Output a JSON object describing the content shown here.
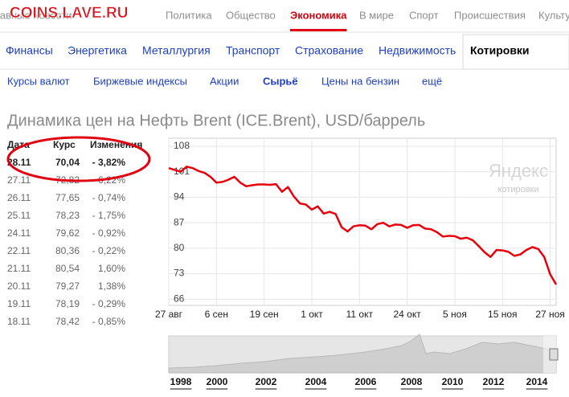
{
  "watermark": "COINS.LAVE.RU",
  "nav_top": {
    "items": [
      "Главные новости",
      "Политика",
      "Общество",
      "Экономика",
      "В мире",
      "Спорт",
      "Происшествия",
      "Культура"
    ],
    "active": 3
  },
  "nav_sections": {
    "items": [
      "Финансы",
      "Энергетика",
      "Металлургия",
      "Транспорт",
      "Страхование",
      "Недвижимость",
      "Котировки"
    ],
    "active": 6
  },
  "nav_sub": {
    "items": [
      "Курсы валют",
      "Биржевые индексы",
      "Акции",
      "Сырьё",
      "Цены на бензин",
      "ещё"
    ],
    "active": 3
  },
  "title": "Динамика цен на Нефть Brent (ICE.Brent), USD/баррель",
  "table": {
    "headers": [
      "Дата",
      "Курс",
      "Изменения"
    ],
    "rows": [
      [
        "28.11",
        "70,04",
        "- 3,82%"
      ],
      [
        "27.11",
        "72,82",
        "- 6,22%"
      ],
      [
        "26.11",
        "77,65",
        "- 0,74%"
      ],
      [
        "25.11",
        "78,23",
        "- 1,75%"
      ],
      [
        "24.11",
        "79,62",
        "- 0,92%"
      ],
      [
        "22.11",
        "80,36",
        "- 0,22%"
      ],
      [
        "21.11",
        "80,54",
        "1,60%"
      ],
      [
        "20.11",
        "79,27",
        "1,38%"
      ],
      [
        "19.11",
        "78,19",
        "- 0,29%"
      ],
      [
        "18.11",
        "78,42",
        "- 0,85%"
      ]
    ]
  },
  "chart": {
    "type": "line",
    "series": [
      {
        "color": "#e8000b",
        "values": [
          102.0,
          101.5,
          101.0,
          102.4,
          102.0,
          101.2,
          100.7,
          99.6,
          98.0,
          98.2,
          98.8,
          99.6,
          98.0,
          97.0,
          97.3,
          97.5,
          97.5,
          97.4,
          97.6,
          95.5,
          96.8,
          94.2,
          92.3,
          92.0,
          90.6,
          91.5,
          89.5,
          90.0,
          89.4,
          85.8,
          84.6,
          86.0,
          86.3,
          86.2,
          85.2,
          86.6,
          87.0,
          86.0,
          86.5,
          86.4,
          85.6,
          86.3,
          86.4,
          85.4,
          85.2,
          84.4,
          83.2,
          83.4,
          83.3,
          82.6,
          82.9,
          82.2,
          80.6,
          78.9,
          77.6,
          79.5,
          79.4,
          79.0,
          77.9,
          78.3,
          79.5,
          80.3,
          79.8,
          77.6,
          72.82,
          70.04
        ]
      }
    ],
    "xlim": [
      0,
      65
    ],
    "xticks": [
      {
        "value": 0,
        "label": "27 авг"
      },
      {
        "value": 8,
        "label": "6 сен"
      },
      {
        "value": 16,
        "label": "19 сен"
      },
      {
        "value": 24,
        "label": "1 окт"
      },
      {
        "value": 32,
        "label": "11 окт"
      },
      {
        "value": 40,
        "label": "24 окт"
      },
      {
        "value": 48,
        "label": "5 ноя"
      },
      {
        "value": 56,
        "label": "15 ноя"
      },
      {
        "value": 64,
        "label": "27 ноя"
      }
    ],
    "ylim": [
      64.3,
      110.2
    ],
    "yticks": [
      66,
      73,
      80,
      87,
      94,
      101,
      108
    ],
    "grid": true,
    "logo": [
      "Яндекс",
      "котировки"
    ]
  },
  "navigator": {
    "years": [
      "1998",
      "2000",
      "2002",
      "2004",
      "2006",
      "2008",
      "2010",
      "2012",
      "2014"
    ]
  }
}
